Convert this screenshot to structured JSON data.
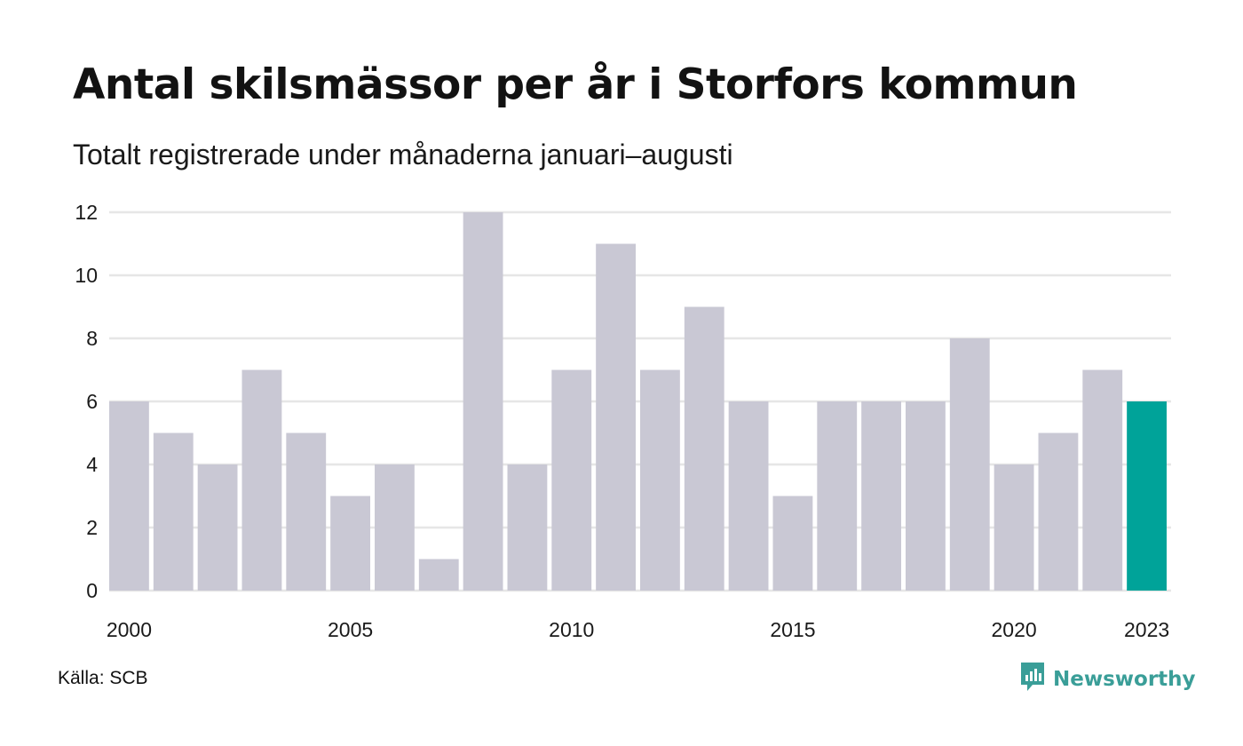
{
  "title": "Antal skilsmässor per år i Storfors kommun",
  "subtitle": "Totalt registrerade under månaderna januari–augusti",
  "source": "Källa: SCB",
  "brand": {
    "name": "Newsworthy",
    "icon": "newsworthy-logo-icon",
    "color": "#3a9e98"
  },
  "chart_data": {
    "type": "bar",
    "categories": [
      "2000",
      "2001",
      "2002",
      "2003",
      "2004",
      "2005",
      "2006",
      "2007",
      "2008",
      "2009",
      "2010",
      "2011",
      "2012",
      "2013",
      "2014",
      "2015",
      "2016",
      "2017",
      "2018",
      "2019",
      "2020",
      "2021",
      "2022",
      "2023"
    ],
    "values": [
      6,
      5,
      4,
      7,
      5,
      3,
      4,
      1,
      12,
      4,
      7,
      11,
      7,
      9,
      6,
      3,
      6,
      6,
      6,
      8,
      4,
      5,
      7,
      6
    ],
    "x_tick_labels": [
      "2000",
      "2005",
      "2010",
      "2015",
      "2020",
      "2023"
    ],
    "y_ticks": [
      0,
      2,
      4,
      6,
      8,
      10,
      12
    ],
    "ylim": [
      0,
      12
    ],
    "grid": true,
    "bar_color": "#c9c8d4",
    "highlight_category": "2023",
    "highlight_color": "#00a399",
    "gridline_color": "#e6e6e6"
  }
}
